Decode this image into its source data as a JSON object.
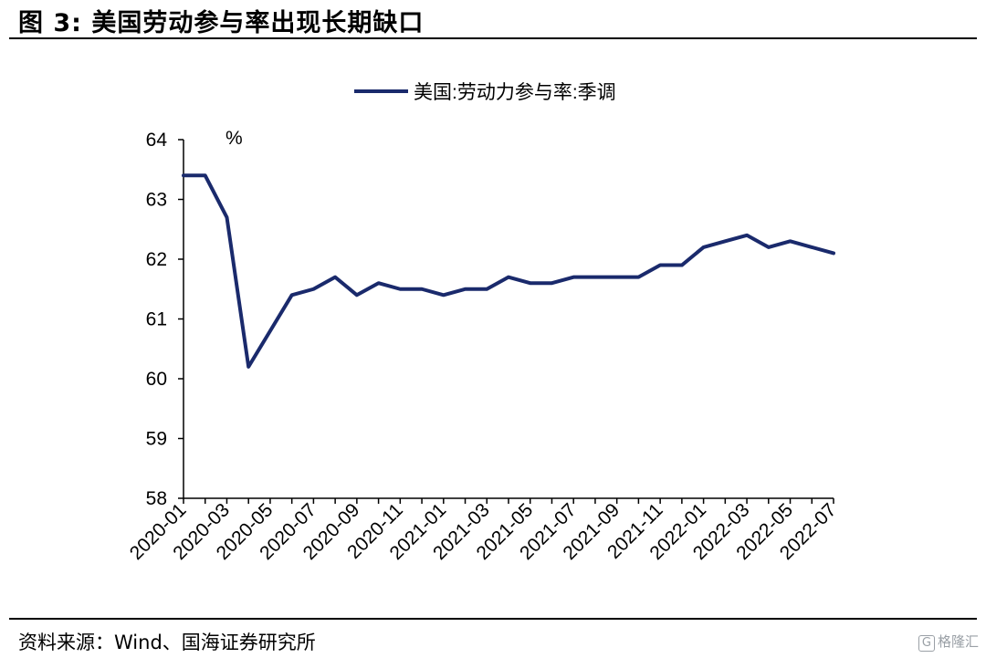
{
  "figure": {
    "title": "图 3:  美国劳动参与率出现长期缺口",
    "source": "资料来源：Wind、国海证券研究所",
    "watermark_text": "格隆汇",
    "watermark_mark": "G"
  },
  "chart_data": {
    "type": "line",
    "title": "",
    "xlabel": "",
    "ylabel": "%",
    "ylim": [
      58,
      64
    ],
    "yticks": [
      58,
      59,
      60,
      61,
      62,
      63,
      64
    ],
    "x": [
      "2020-01",
      "2020-02",
      "2020-03",
      "2020-04",
      "2020-05",
      "2020-06",
      "2020-07",
      "2020-08",
      "2020-09",
      "2020-10",
      "2020-11",
      "2020-12",
      "2021-01",
      "2021-02",
      "2021-03",
      "2021-04",
      "2021-05",
      "2021-06",
      "2021-07",
      "2021-08",
      "2021-09",
      "2021-10",
      "2021-11",
      "2021-12",
      "2022-01",
      "2022-02",
      "2022-03",
      "2022-04",
      "2022-05",
      "2022-06",
      "2022-07"
    ],
    "xtick_labels": [
      "2020-01",
      "2020-03",
      "2020-05",
      "2020-07",
      "2020-09",
      "2020-11",
      "2021-01",
      "2021-03",
      "2021-05",
      "2021-07",
      "2021-09",
      "2021-11",
      "2022-01",
      "2022-03",
      "2022-05",
      "2022-07"
    ],
    "series": [
      {
        "name": "美国:劳动力参与率:季调",
        "color": "#1a2a6c",
        "values": [
          63.4,
          63.4,
          62.7,
          60.2,
          60.8,
          61.4,
          61.5,
          61.7,
          61.4,
          61.6,
          61.5,
          61.5,
          61.4,
          61.5,
          61.5,
          61.7,
          61.6,
          61.6,
          61.7,
          61.7,
          61.7,
          61.7,
          61.9,
          61.9,
          62.2,
          62.3,
          62.4,
          62.2,
          62.3,
          62.2,
          62.1
        ]
      }
    ],
    "grid": false,
    "legend_position": "top-center"
  }
}
